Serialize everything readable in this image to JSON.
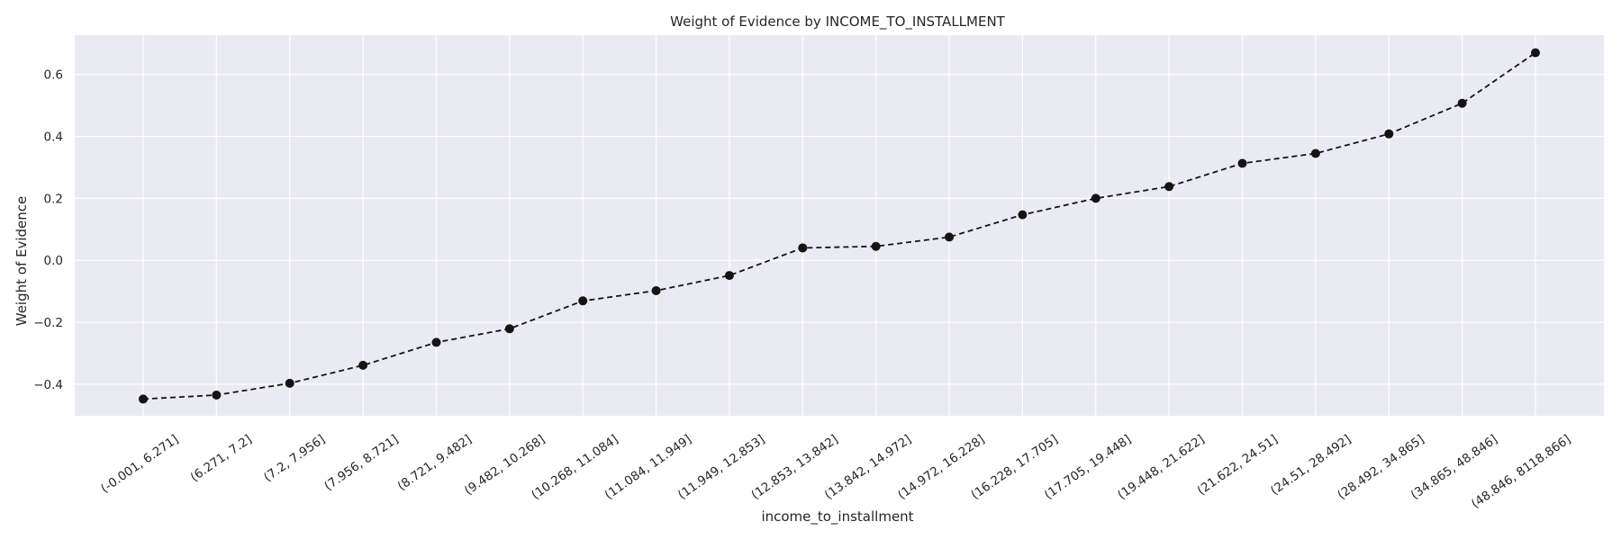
{
  "chart_data": {
    "type": "line",
    "title": "Weight of Evidence by INCOME_TO_INSTALLMENT",
    "xlabel": "income_to_installment",
    "ylabel": "Weight of Evidence",
    "categories": [
      "(-0.001, 6.271]",
      "(6.271, 7.2]",
      "(7.2, 7.956]",
      "(7.956, 8.721]",
      "(8.721, 9.482]",
      "(9.482, 10.268]",
      "(10.268, 11.084]",
      "(11.084, 11.949]",
      "(11.949, 12.853]",
      "(12.853, 13.842]",
      "(13.842, 14.972]",
      "(14.972, 16.228]",
      "(16.228, 17.705]",
      "(17.705, 19.448]",
      "(19.448, 21.622]",
      "(21.622, 24.51]",
      "(24.51, 28.492]",
      "(28.492, 34.865]",
      "(34.865, 48.846]",
      "(48.846, 8118.866]"
    ],
    "values": [
      -0.448,
      -0.435,
      -0.397,
      -0.339,
      -0.265,
      -0.221,
      -0.131,
      -0.098,
      -0.049,
      0.04,
      0.045,
      0.075,
      0.147,
      0.2,
      0.238,
      0.313,
      0.345,
      0.408,
      0.507,
      0.67
    ],
    "yticks": [
      -0.4,
      -0.2,
      0.0,
      0.2,
      0.4,
      0.6
    ],
    "ytick_labels": [
      "−0.4",
      "−0.2",
      "0.0",
      "0.2",
      "0.4",
      "0.6"
    ],
    "ylim": [
      -0.502,
      0.727
    ],
    "grid": true,
    "legend": "none",
    "line_style": "dashed",
    "marker": "circle",
    "colors": {
      "series": "#141414",
      "plot_background": "#eaeaf2",
      "grid": "#ffffff",
      "text": "#262626"
    }
  }
}
